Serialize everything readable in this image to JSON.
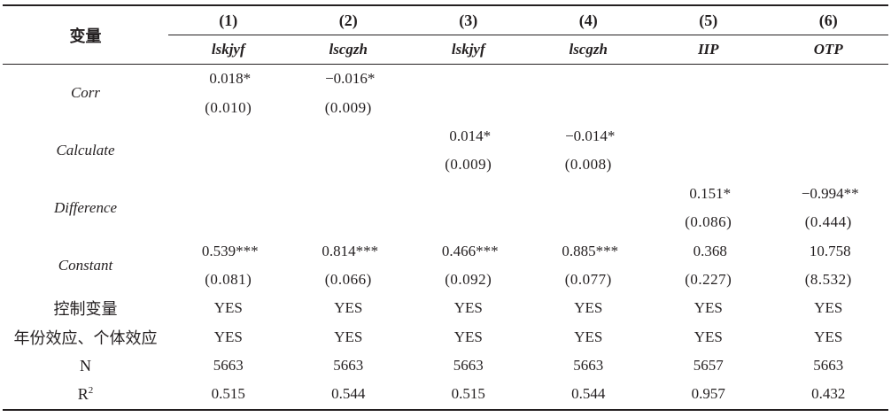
{
  "table": {
    "header_var": "变量",
    "columns": [
      {
        "num": "(1)",
        "dep": "lskjyf"
      },
      {
        "num": "(2)",
        "dep": "lscgzh"
      },
      {
        "num": "(3)",
        "dep": "lskjyf"
      },
      {
        "num": "(4)",
        "dep": "lscgzh"
      },
      {
        "num": "(5)",
        "dep": "IIP"
      },
      {
        "num": "(6)",
        "dep": "OTP"
      }
    ],
    "variables": [
      {
        "name": "Corr",
        "coef": [
          "0.018*",
          "−0.016*",
          "",
          "",
          "",
          ""
        ],
        "se": [
          "(0.010)",
          "(0.009)",
          "",
          "",
          "",
          ""
        ]
      },
      {
        "name": "Calculate",
        "coef": [
          "",
          "",
          "0.014*",
          "−0.014*",
          "",
          ""
        ],
        "se": [
          "",
          "",
          "(0.009)",
          "(0.008)",
          "",
          ""
        ]
      },
      {
        "name": "Difference",
        "coef": [
          "",
          "",
          "",
          "",
          "0.151*",
          "−0.994**"
        ],
        "se": [
          "",
          "",
          "",
          "",
          "(0.086)",
          "(0.444)"
        ]
      },
      {
        "name": "Constant",
        "coef": [
          "0.539***",
          "0.814***",
          "0.466***",
          "0.885***",
          "0.368",
          "10.758"
        ],
        "se": [
          "(0.081)",
          "(0.066)",
          "(0.092)",
          "(0.077)",
          "(0.227)",
          "(8.532)"
        ]
      }
    ],
    "extra_rows": [
      {
        "label": "控制变量",
        "values": [
          "YES",
          "YES",
          "YES",
          "YES",
          "YES",
          "YES"
        ]
      },
      {
        "label": "年份效应、个体效应",
        "values": [
          "YES",
          "YES",
          "YES",
          "YES",
          "YES",
          "YES"
        ]
      },
      {
        "label": "N",
        "values": [
          "5663",
          "5663",
          "5663",
          "5663",
          "5657",
          "5663"
        ]
      }
    ],
    "r2_row": {
      "label_base": "R",
      "label_sup": "2",
      "values": [
        "0.515",
        "0.544",
        "0.515",
        "0.544",
        "0.957",
        "0.432"
      ]
    }
  }
}
